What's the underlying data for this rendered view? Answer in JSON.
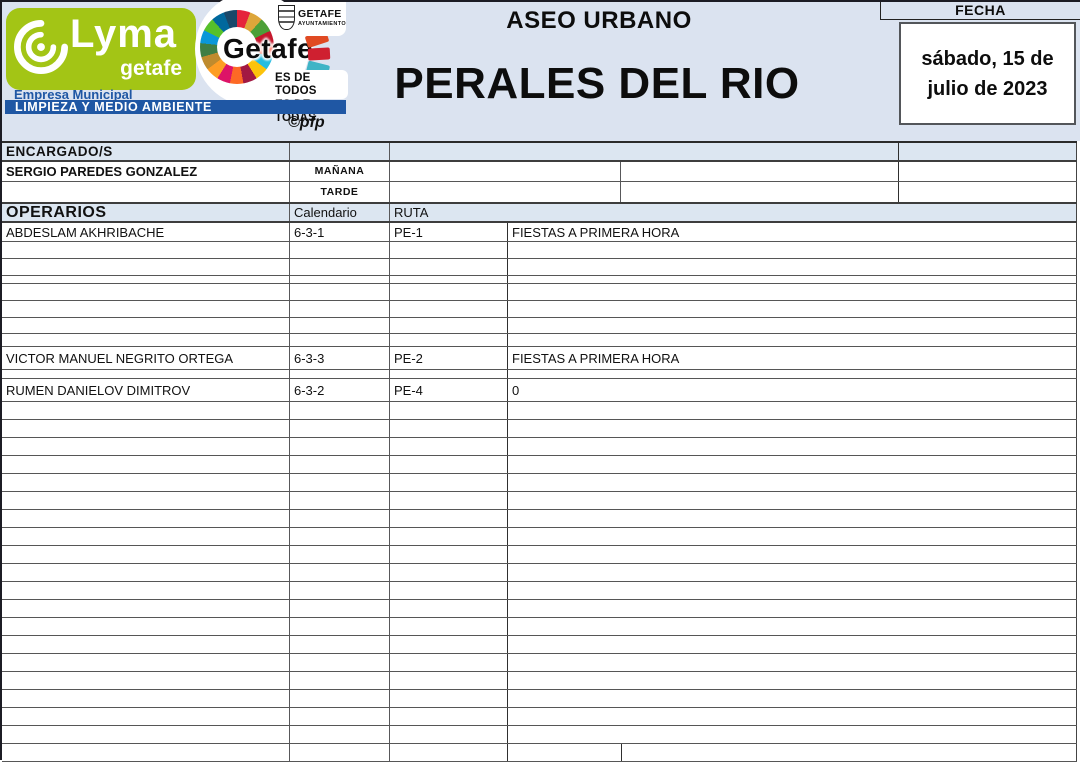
{
  "banner": {
    "title_top": "ASEO URBANO",
    "title_main": "PERALES DEL RIO",
    "fecha_label": "FECHA",
    "date_line1": "sábado, 15 de",
    "date_line2": "julio de 2023",
    "credit": "©pfp",
    "lyma": {
      "name_main": "Lyma",
      "name_sub": "getafe",
      "empresa": "Empresa Municipal",
      "department": "LIMPIEZA Y MEDIO AMBIENTE"
    },
    "getafe": {
      "logo_text": "Getafe",
      "council": "GETAFE",
      "council_sub": "AYUNTAMIENTO",
      "slogan_line1": "ES DE TODOS",
      "slogan_line2": "ES DE TODAS"
    },
    "icons": {
      "lyma_spiral": "swirl-icon",
      "sdg_wheel": "sdg-color-wheel-icon",
      "crest": "getafe-coat-of-arms-icon"
    }
  },
  "colors": {
    "banner_bg": "#dbe3f0",
    "band_blue": "#dce6f1",
    "brand_green": "#a3c515",
    "brand_blue": "#1f57a4"
  },
  "table": {
    "encargados_label": "ENCARGADO/S",
    "encargado_name": "SERGIO PAREDES GONZALEZ",
    "manana_label": "MAÑANA",
    "tarde_label": "TARDE",
    "operarios_label": "OPERARIOS",
    "calendario_header": "Calendario",
    "ruta_header": "RUTA",
    "workers": [
      {
        "name": "ABDESLAM AKHRIBACHE",
        "calendario": "6-3-1",
        "ruta": "PE-1",
        "nota": "FIESTAS A PRIMERA HORA"
      },
      {
        "name": "VICTOR MANUEL NEGRITO ORTEGA",
        "calendario": "6-3-3",
        "ruta": "PE-2",
        "nota": "FIESTAS A PRIMERA HORA"
      },
      {
        "name": "RUMEN DANIELOV DIMITROV",
        "calendario": "6-3-2",
        "ruta": "PE-4",
        "nota": "0"
      }
    ]
  }
}
